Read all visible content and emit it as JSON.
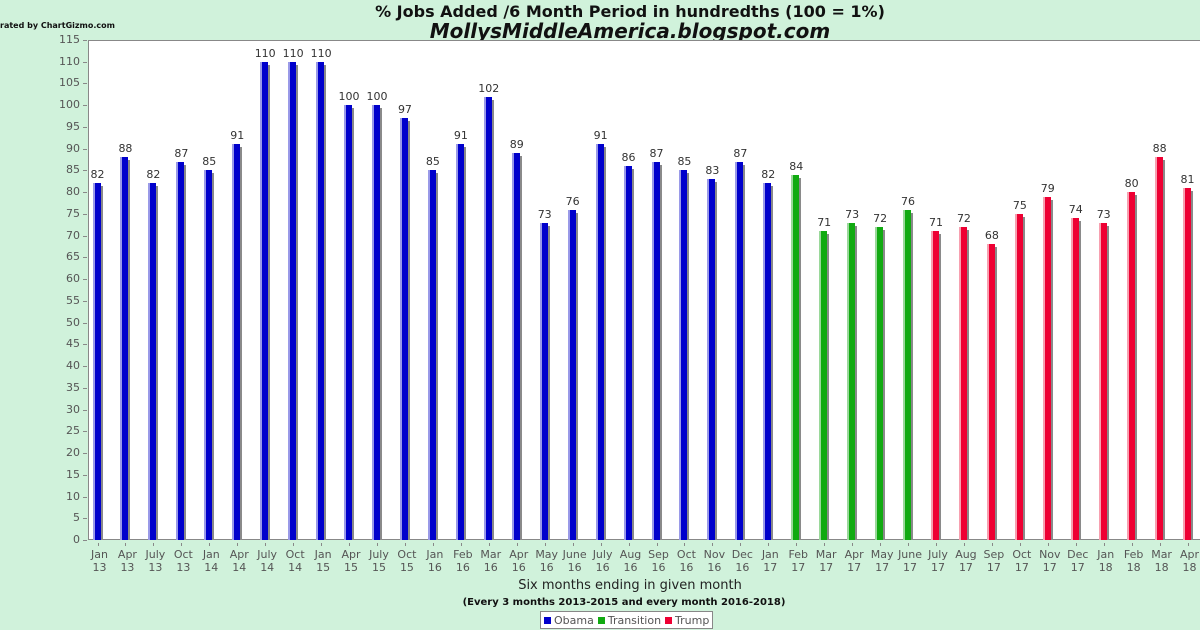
{
  "chart_data": {
    "type": "bar",
    "title": "% Jobs Added /6 Month Period in hundredths (100 = 1%)",
    "subtitle": "MollysMiddleAmerica.blogspot.com",
    "credit": "rated by ChartGizmo.com",
    "xlabel": "Six months ending in given month",
    "xlabel_note": "(Every 3 months 2013-2015 and every month 2016-2018)",
    "ylabel": "",
    "ylim": [
      0,
      115
    ],
    "yticks": [
      0,
      5,
      10,
      15,
      20,
      25,
      30,
      35,
      40,
      45,
      50,
      55,
      60,
      65,
      70,
      75,
      80,
      85,
      90,
      95,
      100,
      105,
      110,
      115
    ],
    "grid": false,
    "legend_position": "bottom",
    "series_colors": {
      "Obama": "#0000cc",
      "Transition": "#11aa11",
      "Trump": "#ee0033"
    },
    "legend": [
      {
        "name": "Obama",
        "color": "#0000cc"
      },
      {
        "name": "Transition",
        "color": "#11aa11"
      },
      {
        "name": "Trump",
        "color": "#ee0033"
      }
    ],
    "categories": [
      "Jan 13",
      "Apr 13",
      "July 13",
      "Oct 13",
      "Jan 14",
      "Apr 14",
      "July 14",
      "Oct 14",
      "Jan 15",
      "Apr 15",
      "July 15",
      "Oct 15",
      "Jan 16",
      "Feb 16",
      "Mar 16",
      "Apr 16",
      "May 16",
      "June 16",
      "July 16",
      "Aug 16",
      "Sep 16",
      "Oct 16",
      "Nov 16",
      "Dec 16",
      "Jan 17",
      "Feb 17",
      "Mar 17",
      "Apr 17",
      "May 17",
      "June 17",
      "July 17",
      "Aug 17",
      "Sep 17",
      "Oct 17",
      "Nov 17",
      "Dec 17",
      "Jan 18",
      "Feb 18",
      "Mar 18",
      "Apr 18"
    ],
    "values": [
      82,
      88,
      82,
      87,
      85,
      91,
      110,
      110,
      110,
      100,
      100,
      97,
      85,
      91,
      102,
      89,
      73,
      76,
      91,
      86,
      87,
      85,
      83,
      87,
      82,
      84,
      71,
      73,
      72,
      76,
      71,
      72,
      68,
      75,
      79,
      74,
      73,
      80,
      88,
      81
    ],
    "series_assignment": [
      "Obama",
      "Obama",
      "Obama",
      "Obama",
      "Obama",
      "Obama",
      "Obama",
      "Obama",
      "Obama",
      "Obama",
      "Obama",
      "Obama",
      "Obama",
      "Obama",
      "Obama",
      "Obama",
      "Obama",
      "Obama",
      "Obama",
      "Obama",
      "Obama",
      "Obama",
      "Obama",
      "Obama",
      "Obama",
      "Transition",
      "Transition",
      "Transition",
      "Transition",
      "Transition",
      "Trump",
      "Trump",
      "Trump",
      "Trump",
      "Trump",
      "Trump",
      "Trump",
      "Trump",
      "Trump",
      "Trump"
    ],
    "x_tick_labels": [
      [
        "Jan",
        "13"
      ],
      [
        "Apr",
        "13"
      ],
      [
        "July",
        "13"
      ],
      [
        "Oct",
        "13"
      ],
      [
        "Jan",
        "14"
      ],
      [
        "Apr",
        "14"
      ],
      [
        "July",
        "14"
      ],
      [
        "Oct",
        "14"
      ],
      [
        "Jan",
        "15"
      ],
      [
        "Apr",
        "15"
      ],
      [
        "July",
        "15"
      ],
      [
        "Oct",
        "15"
      ],
      [
        "Jan",
        "16"
      ],
      [
        "Feb",
        "16"
      ],
      [
        "Mar",
        "16"
      ],
      [
        "Apr",
        "16"
      ],
      [
        "May",
        "16"
      ],
      [
        "June",
        "16"
      ],
      [
        "July",
        "16"
      ],
      [
        "Aug",
        "16"
      ],
      [
        "Sep",
        "16"
      ],
      [
        "Oct",
        "16"
      ],
      [
        "Nov",
        "16"
      ],
      [
        "Dec",
        "16"
      ],
      [
        "Jan",
        "17"
      ],
      [
        "Feb",
        "17"
      ],
      [
        "Mar",
        "17"
      ],
      [
        "Apr",
        "17"
      ],
      [
        "May",
        "17"
      ],
      [
        "June",
        "17"
      ],
      [
        "July",
        "17"
      ],
      [
        "Aug",
        "17"
      ],
      [
        "Sep",
        "17"
      ],
      [
        "Oct",
        "17"
      ],
      [
        "Nov",
        "17"
      ],
      [
        "Dec",
        "17"
      ],
      [
        "Jan",
        "18"
      ],
      [
        "Feb",
        "18"
      ],
      [
        "Mar",
        "18"
      ],
      [
        "Apr",
        "18"
      ]
    ]
  },
  "header": {
    "title": "% Jobs Added /6 Month Period in hundredths (100 = 1%)",
    "subtitle": "MollysMiddleAmerica.blogspot.com",
    "credit": "rated by ChartGizmo.com"
  },
  "footer": {
    "xlabel": "Six months ending in given month",
    "note": "(Every 3 months 2013-2015 and every month 2016-2018)",
    "legend": [
      "Obama",
      "Transition",
      "Trump"
    ]
  }
}
